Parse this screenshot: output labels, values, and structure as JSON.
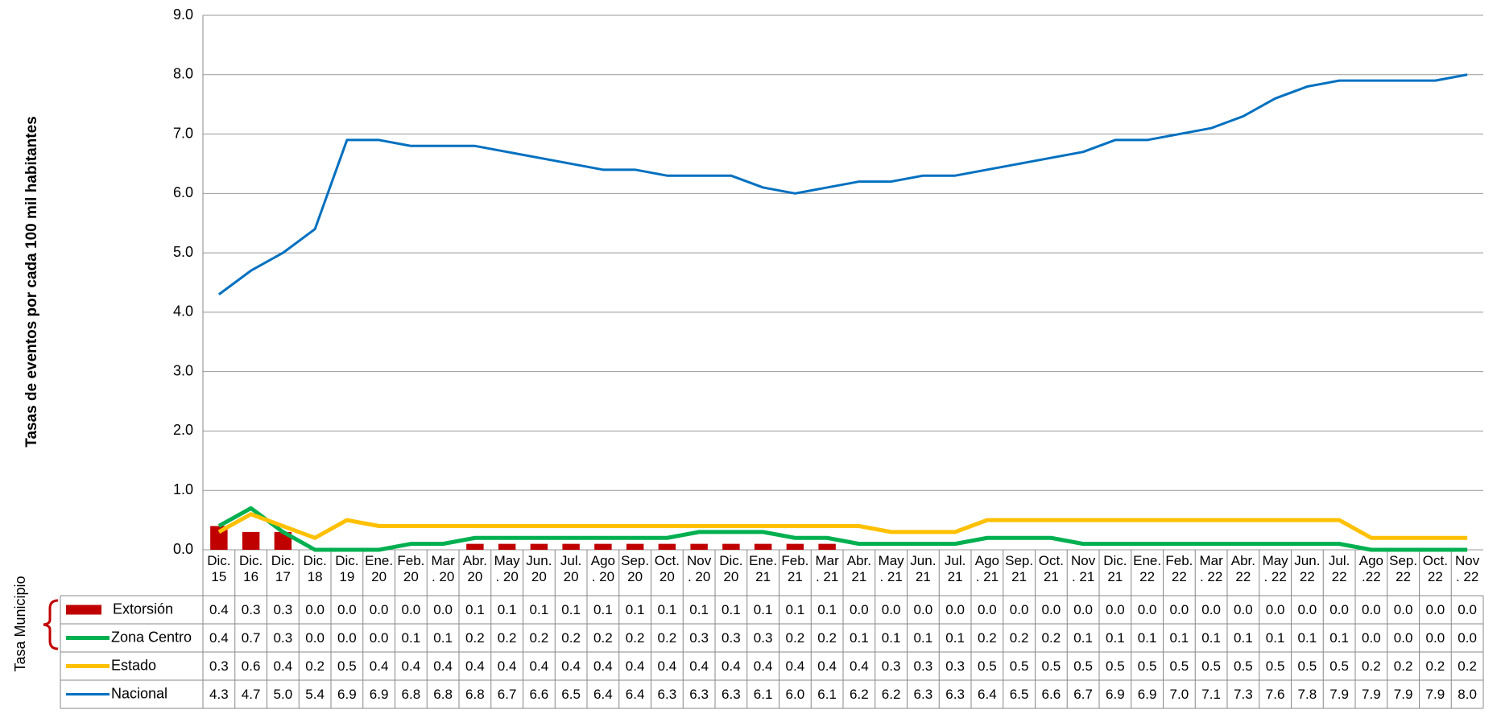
{
  "chart_data": {
    "type": "line",
    "y_axis_label": "Tasas de eventos por cada 100 mil habitantes",
    "side_label": "Tasa Municipio",
    "categories": [
      "Dic.\n15",
      "Dic.\n16",
      "Dic.\n17",
      "Dic.\n18",
      "Dic.\n19",
      "Ene.\n20",
      "Feb.\n20",
      "Mar\n. 20",
      "Abr.\n20",
      "May\n. 20",
      "Jun.\n20",
      "Jul.\n20",
      "Ago\n. 20",
      "Sep.\n20",
      "Oct.\n20",
      "Nov\n. 20",
      "Dic.\n20",
      "Ene.\n21",
      "Feb.\n21",
      "Mar\n. 21",
      "Abr.\n21",
      "May\n. 21",
      "Jun.\n21",
      "Jul.\n21",
      "Ago\n. 21",
      "Sep.\n21",
      "Oct.\n21",
      "Nov\n. 21",
      "Dic.\n21",
      "Ene.\n22",
      "Feb.\n22",
      "Mar\n. 22",
      "Abr.\n22",
      "May\n. 22",
      "Jun.\n22",
      "Jul.\n22",
      "Ago\n.22",
      "Sep.\n22",
      "Oct.\n22",
      "Nov\n. 22"
    ],
    "series": [
      {
        "name": "Extorsión",
        "type": "bar",
        "color": "#c00000",
        "values": [
          0.4,
          0.3,
          0.3,
          0,
          0,
          0,
          0,
          0,
          0.1,
          0.1,
          0.1,
          0.1,
          0.1,
          0.1,
          0.1,
          0.1,
          0.1,
          0.1,
          0.1,
          0.1,
          0,
          0,
          0,
          0,
          0,
          0,
          0,
          0,
          0,
          0,
          0,
          0,
          0,
          0,
          0,
          0,
          0,
          0,
          0,
          0
        ],
        "value_labels": [
          "0.4",
          "0.3",
          "0.3",
          "0.0",
          "0.0",
          "0.0",
          "0.0",
          "0.0",
          "0.1",
          "0.1",
          "0.1",
          "0.1",
          "0.1",
          "0.1",
          "0.1",
          "0.1",
          "0.1",
          "0.1",
          "0.1",
          "0.1",
          "0.0",
          "0.0",
          "0.0",
          "0.0",
          "0.0",
          "0.0",
          "0.0",
          "0.0",
          "0.0",
          "0.0",
          "0.0",
          "0.0",
          "0.0",
          "0.0",
          "0.0",
          "0.0",
          "0.0",
          "0.0",
          "0.0",
          "0.0"
        ]
      },
      {
        "name": "Zona Centro",
        "type": "line",
        "color": "#00b050",
        "width": 5,
        "values": [
          0.4,
          0.7,
          0.3,
          0,
          0,
          0,
          0.1,
          0.1,
          0.2,
          0.2,
          0.2,
          0.2,
          0.2,
          0.2,
          0.2,
          0.3,
          0.3,
          0.3,
          0.2,
          0.2,
          0.1,
          0.1,
          0.1,
          0.1,
          0.2,
          0.2,
          0.2,
          0.1,
          0.1,
          0.1,
          0.1,
          0.1,
          0.1,
          0.1,
          0.1,
          0.1,
          0,
          0,
          0,
          0
        ],
        "value_labels": [
          "0.4",
          "0.7",
          "0.3",
          "0.0",
          "0.0",
          "0.0",
          "0.1",
          "0.1",
          "0.2",
          "0.2",
          "0.2",
          "0.2",
          "0.2",
          "0.2",
          "0.2",
          "0.3",
          "0.3",
          "0.3",
          "0.2",
          "0.2",
          "0.1",
          "0.1",
          "0.1",
          "0.1",
          "0.2",
          "0.2",
          "0.2",
          "0.1",
          "0.1",
          "0.1",
          "0.1",
          "0.1",
          "0.1",
          "0.1",
          "0.1",
          "0.1",
          "0.0",
          "0.0",
          "0.0",
          "0.0"
        ]
      },
      {
        "name": "Estado",
        "type": "line",
        "color": "#ffc000",
        "width": 5,
        "values": [
          0.3,
          0.6,
          0.4,
          0.2,
          0.5,
          0.4,
          0.4,
          0.4,
          0.4,
          0.4,
          0.4,
          0.4,
          0.4,
          0.4,
          0.4,
          0.4,
          0.4,
          0.4,
          0.4,
          0.4,
          0.4,
          0.3,
          0.3,
          0.3,
          0.5,
          0.5,
          0.5,
          0.5,
          0.5,
          0.5,
          0.5,
          0.5,
          0.5,
          0.5,
          0.5,
          0.5,
          0.2,
          0.2,
          0.2,
          0.2
        ],
        "value_labels": [
          "0.3",
          "0.6",
          "0.4",
          "0.2",
          "0.5",
          "0.4",
          "0.4",
          "0.4",
          "0.4",
          "0.4",
          "0.4",
          "0.4",
          "0.4",
          "0.4",
          "0.4",
          "0.4",
          "0.4",
          "0.4",
          "0.4",
          "0.4",
          "0.4",
          "0.3",
          "0.3",
          "0.3",
          "0.5",
          "0.5",
          "0.5",
          "0.5",
          "0.5",
          "0.5",
          "0.5",
          "0.5",
          "0.5",
          "0.5",
          "0.5",
          "0.5",
          "0.2",
          "0.2",
          "0.2",
          "0.2"
        ]
      },
      {
        "name": "Nacional",
        "type": "line",
        "color": "#0070c0",
        "width": 3,
        "values": [
          4.3,
          4.7,
          5.0,
          5.4,
          6.9,
          6.9,
          6.8,
          6.8,
          6.8,
          6.7,
          6.6,
          6.5,
          6.4,
          6.4,
          6.3,
          6.3,
          6.3,
          6.1,
          6.0,
          6.1,
          6.2,
          6.2,
          6.3,
          6.3,
          6.4,
          6.5,
          6.6,
          6.7,
          6.9,
          6.9,
          7.0,
          7.1,
          7.3,
          7.6,
          7.8,
          7.9,
          7.9,
          7.9,
          7.9,
          8.0
        ],
        "value_labels": [
          "4.3",
          "4.7",
          "5.0",
          "5.4",
          "6.9",
          "6.9",
          "6.8",
          "6.8",
          "6.8",
          "6.7",
          "6.6",
          "6.5",
          "6.4",
          "6.4",
          "6.3",
          "6.3",
          "6.3",
          "6.1",
          "6.0",
          "6.1",
          "6.2",
          "6.2",
          "6.3",
          "6.3",
          "6.4",
          "6.5",
          "6.6",
          "6.7",
          "6.9",
          "6.9",
          "7.0",
          "7.1",
          "7.3",
          "7.6",
          "7.8",
          "7.9",
          "7.9",
          "7.9",
          "7.9",
          "8.0"
        ]
      }
    ],
    "ylim": [
      0,
      9
    ],
    "yticks": [
      {
        "value": 0,
        "label": "0.0"
      },
      {
        "value": 1,
        "label": "1.0"
      },
      {
        "value": 2,
        "label": "2.0"
      },
      {
        "value": 3,
        "label": "3.0"
      },
      {
        "value": 4,
        "label": "4.0"
      },
      {
        "value": 5,
        "label": "5.0"
      },
      {
        "value": 6,
        "label": "6.0"
      },
      {
        "value": 7,
        "label": "7.0"
      },
      {
        "value": 8,
        "label": "8.0"
      },
      {
        "value": 9,
        "label": "9.0"
      }
    ],
    "grid": true
  }
}
